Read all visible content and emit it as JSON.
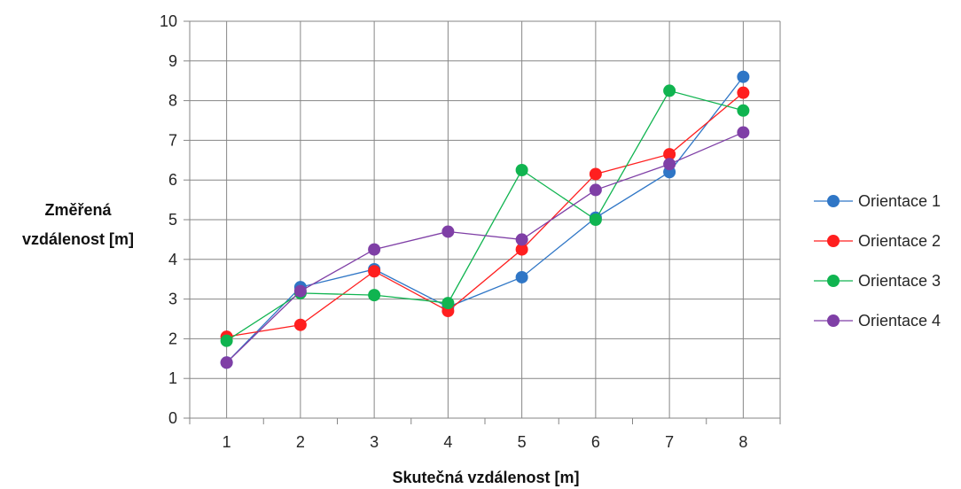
{
  "chart_data": {
    "type": "line",
    "x": [
      1,
      2,
      3,
      4,
      5,
      6,
      7,
      8
    ],
    "categories": [
      "1",
      "2",
      "3",
      "4",
      "5",
      "6",
      "7",
      "8"
    ],
    "xlabel": "Skutečná vzdálenost [m]",
    "ylabel_lines": [
      "Změřená",
      "vzdálenost [m]"
    ],
    "ylim": [
      0,
      10
    ],
    "yticks": [
      "0",
      "1",
      "2",
      "3",
      "4",
      "5",
      "6",
      "7",
      "8",
      "9",
      "10"
    ],
    "grid": true,
    "legend": "right",
    "series": [
      {
        "name": "Orientace 1",
        "color": "#2f76c6",
        "values": [
          1.4,
          3.3,
          3.75,
          2.8,
          3.55,
          5.05,
          6.2,
          8.6
        ]
      },
      {
        "name": "Orientace 2",
        "color": "#ff1f1f",
        "values": [
          2.05,
          2.35,
          3.7,
          2.7,
          4.25,
          6.15,
          6.65,
          8.2
        ]
      },
      {
        "name": "Orientace 3",
        "color": "#10b450",
        "values": [
          1.95,
          3.15,
          3.1,
          2.9,
          6.25,
          5.0,
          8.25,
          7.75
        ]
      },
      {
        "name": "Orientace 4",
        "color": "#7f3fa6",
        "values": [
          1.4,
          3.2,
          4.25,
          4.7,
          4.5,
          5.75,
          6.4,
          7.2
        ]
      }
    ]
  }
}
